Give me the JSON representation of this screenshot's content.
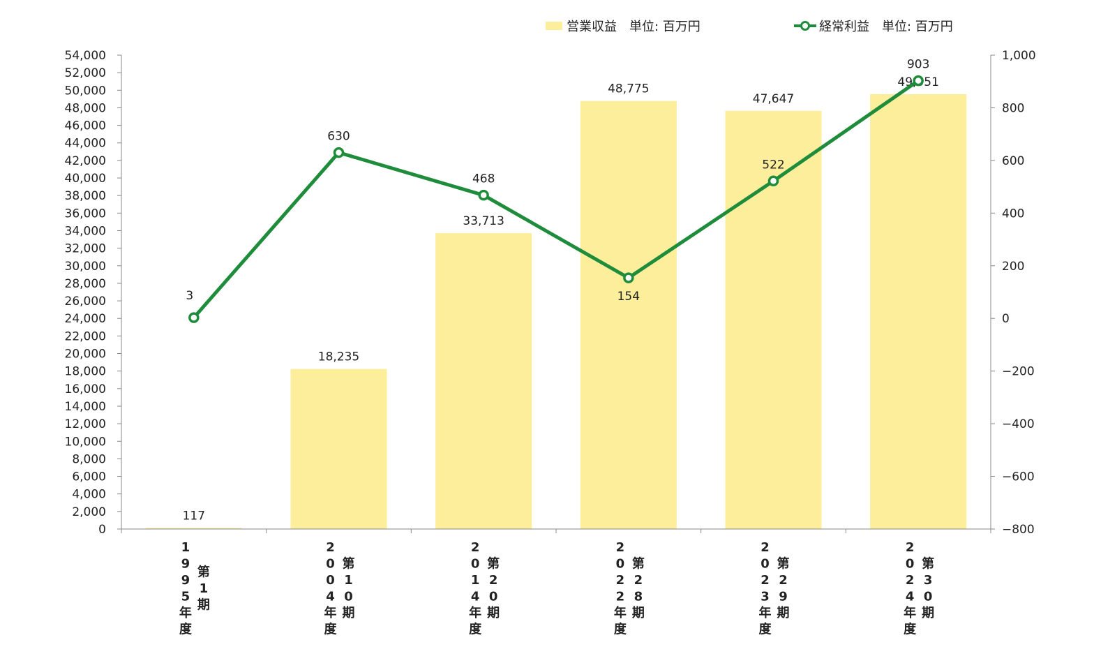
{
  "chart_data": {
    "type": "bar",
    "categories": [
      "1995年度 第1期",
      "2004年度 第10期",
      "2014年度 第20期",
      "2022年度 第28期",
      "2023年度 第29期",
      "2024年度 第30期"
    ],
    "category_lines": [
      [
        "1995年度",
        "第1期"
      ],
      [
        "2004年度",
        "第10期"
      ],
      [
        "2014年度",
        "第20期"
      ],
      [
        "2022年度",
        "第28期"
      ],
      [
        "2023年度",
        "第29期"
      ],
      [
        "2024年度",
        "第30期"
      ]
    ],
    "series": [
      {
        "name": "営業収益　単位: 百万円",
        "type": "bar",
        "axis": "left",
        "color": "#fcee9a",
        "values": [
          117,
          18235,
          33713,
          48775,
          47647,
          49551
        ],
        "labels": [
          "117",
          "18,235",
          "33,713",
          "48,775",
          "47,647",
          "49,551"
        ]
      },
      {
        "name": "経常利益　単位: 百万円",
        "type": "line",
        "axis": "right",
        "color": "#1e8c3a",
        "values": [
          3,
          630,
          468,
          154,
          522,
          903
        ],
        "labels": [
          "3",
          "630",
          "468",
          "154",
          "522",
          "903"
        ]
      }
    ],
    "y_left": {
      "min": 0,
      "max": 54000,
      "step": 2000,
      "tick_labels": [
        "0",
        "2,000",
        "4,000",
        "6,000",
        "8,000",
        "10,000",
        "12,000",
        "14,000",
        "16,000",
        "18,000",
        "20,000",
        "22,000",
        "24,000",
        "26,000",
        "28,000",
        "30,000",
        "32,000",
        "34,000",
        "36,000",
        "38,000",
        "40,000",
        "42,000",
        "44,000",
        "46,000",
        "48,000",
        "50,000",
        "52,000",
        "54,000"
      ]
    },
    "y_right": {
      "min": -800,
      "max": 1000,
      "step": 200,
      "tick_labels": [
        "−800",
        "−600",
        "−400",
        "−200",
        "0",
        "200",
        "400",
        "600",
        "800",
        "1,000"
      ]
    },
    "legend_position": "top-right",
    "grid": false
  }
}
